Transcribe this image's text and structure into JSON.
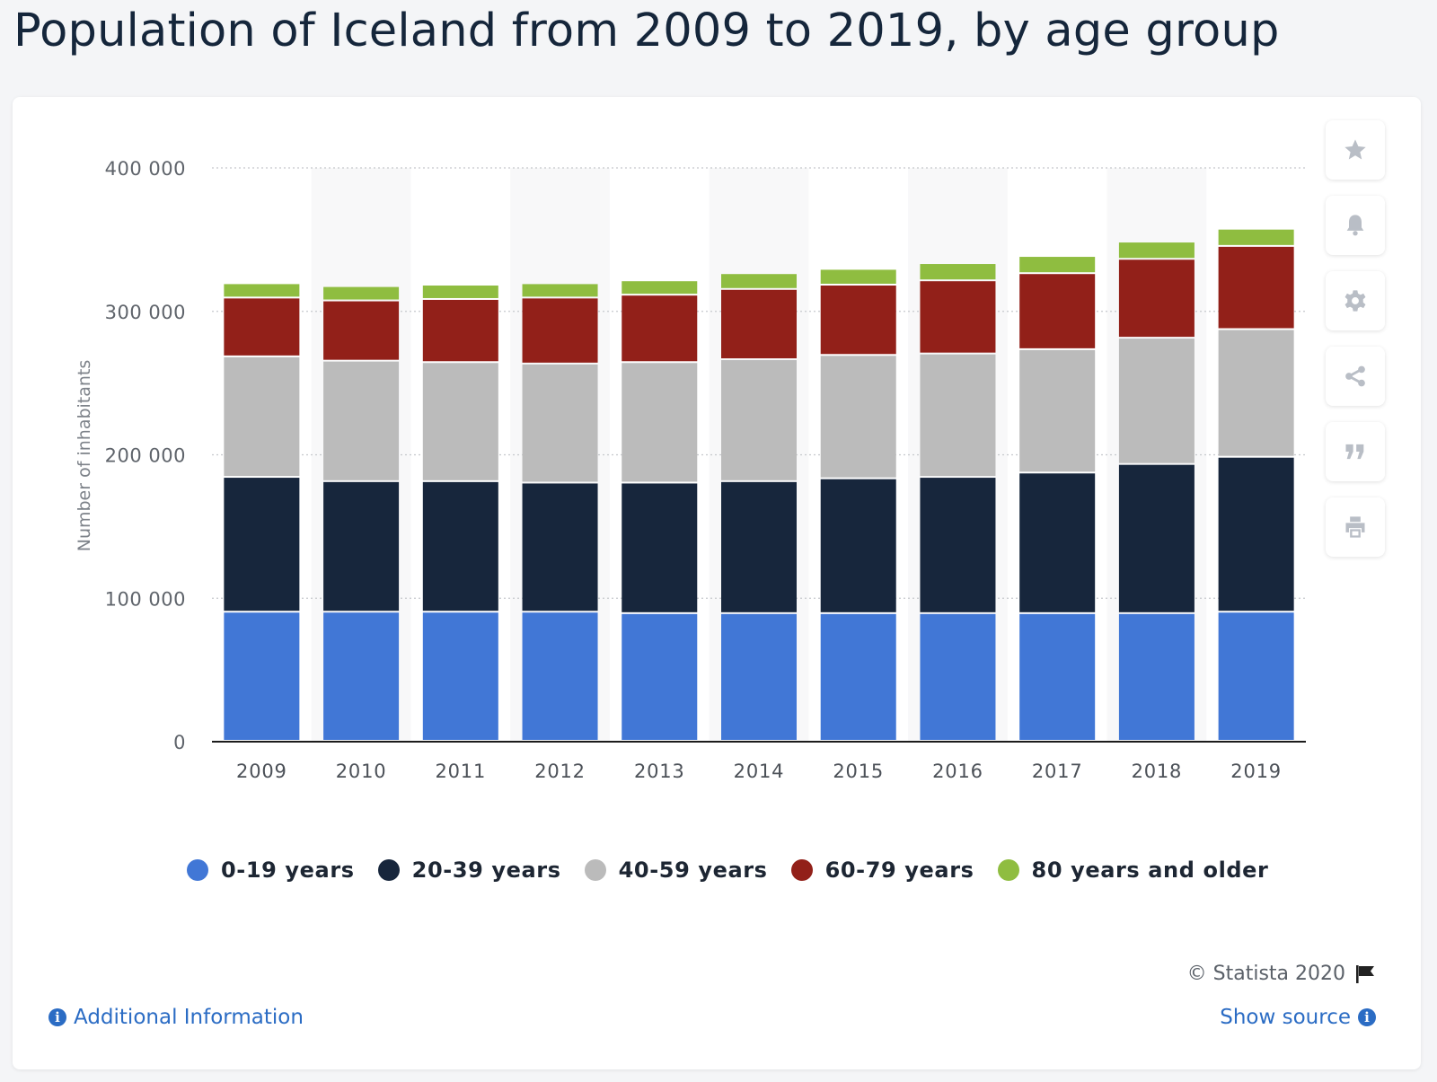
{
  "page": {
    "title": "Population of Iceland from 2009 to 2019, by age group"
  },
  "toolbar": {
    "buttons": [
      {
        "icon": "star-icon",
        "label": "favorite"
      },
      {
        "icon": "bell-icon",
        "label": "notification"
      },
      {
        "icon": "gear-icon",
        "label": "settings"
      },
      {
        "icon": "share-icon",
        "label": "share"
      },
      {
        "icon": "quote-icon",
        "label": "cite"
      },
      {
        "icon": "print-icon",
        "label": "print"
      }
    ]
  },
  "chart_data": {
    "type": "bar",
    "stacked": true,
    "categories": [
      "2009",
      "2010",
      "2011",
      "2012",
      "2013",
      "2014",
      "2015",
      "2016",
      "2017",
      "2018",
      "2019"
    ],
    "series": [
      {
        "name": "0-19 years",
        "color": "#4177d6",
        "values": [
          90000,
          90000,
          90000,
          90000,
          89000,
          89000,
          89000,
          89000,
          89000,
          89000,
          90000
        ]
      },
      {
        "name": "20-39 years",
        "color": "#17263c",
        "values": [
          94000,
          91000,
          91000,
          90000,
          91000,
          92000,
          94000,
          95000,
          98000,
          104000,
          108000
        ]
      },
      {
        "name": "40-59 years",
        "color": "#bbbbbb",
        "values": [
          84000,
          84000,
          83000,
          83000,
          84000,
          85000,
          86000,
          86000,
          86000,
          88000,
          89000
        ]
      },
      {
        "name": "60-79 years",
        "color": "#922019",
        "values": [
          41000,
          42000,
          44000,
          46000,
          47000,
          49000,
          49000,
          51000,
          53000,
          55000,
          58000
        ]
      },
      {
        "name": "80 years and older",
        "color": "#8fbd40",
        "values": [
          10000,
          10000,
          10000,
          10000,
          10000,
          11000,
          11000,
          12000,
          12000,
          12000,
          12000
        ]
      }
    ],
    "ylabel": "Number of inhabitants",
    "ylim": [
      0,
      400000
    ],
    "yticks": [
      "0",
      "100 000",
      "200 000",
      "300 000",
      "400 000"
    ],
    "grid": true,
    "legend_position": "bottom"
  },
  "footer": {
    "copyright": "© Statista 2020",
    "additional_info": "Additional Information",
    "show_source": "Show source"
  }
}
